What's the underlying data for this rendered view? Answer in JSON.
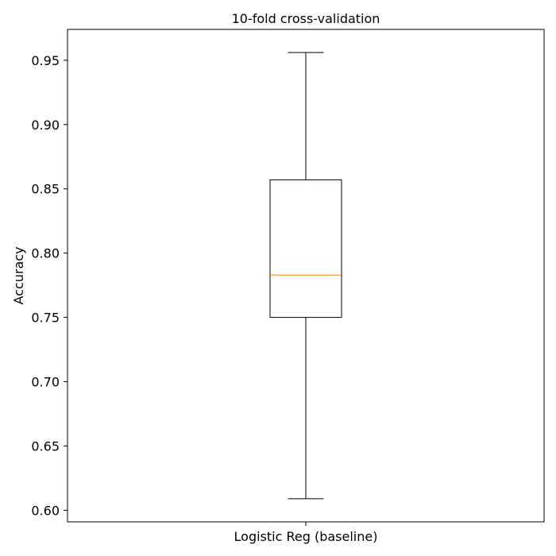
{
  "chart_data": {
    "type": "box",
    "title": "10-fold cross-validation",
    "xlabel": "",
    "ylabel": "Accuracy",
    "categories": [
      "Logistic Reg (baseline)"
    ],
    "series": [
      {
        "category": "Logistic Reg (baseline)",
        "whisker_low": 0.609,
        "q1": 0.75,
        "median": 0.783,
        "q3": 0.857,
        "whisker_high": 0.956
      }
    ],
    "ylim": [
      0.591,
      0.974
    ],
    "yticks": [
      0.6,
      0.65,
      0.7,
      0.75,
      0.8,
      0.85,
      0.9,
      0.95
    ],
    "ytick_labels": [
      "0.60",
      "0.65",
      "0.70",
      "0.75",
      "0.80",
      "0.85",
      "0.90",
      "0.95"
    ],
    "grid": false,
    "colors": {
      "box": "#000000",
      "median": "#ff7f0e",
      "whisker": "#000000",
      "axes": "#000000"
    }
  }
}
